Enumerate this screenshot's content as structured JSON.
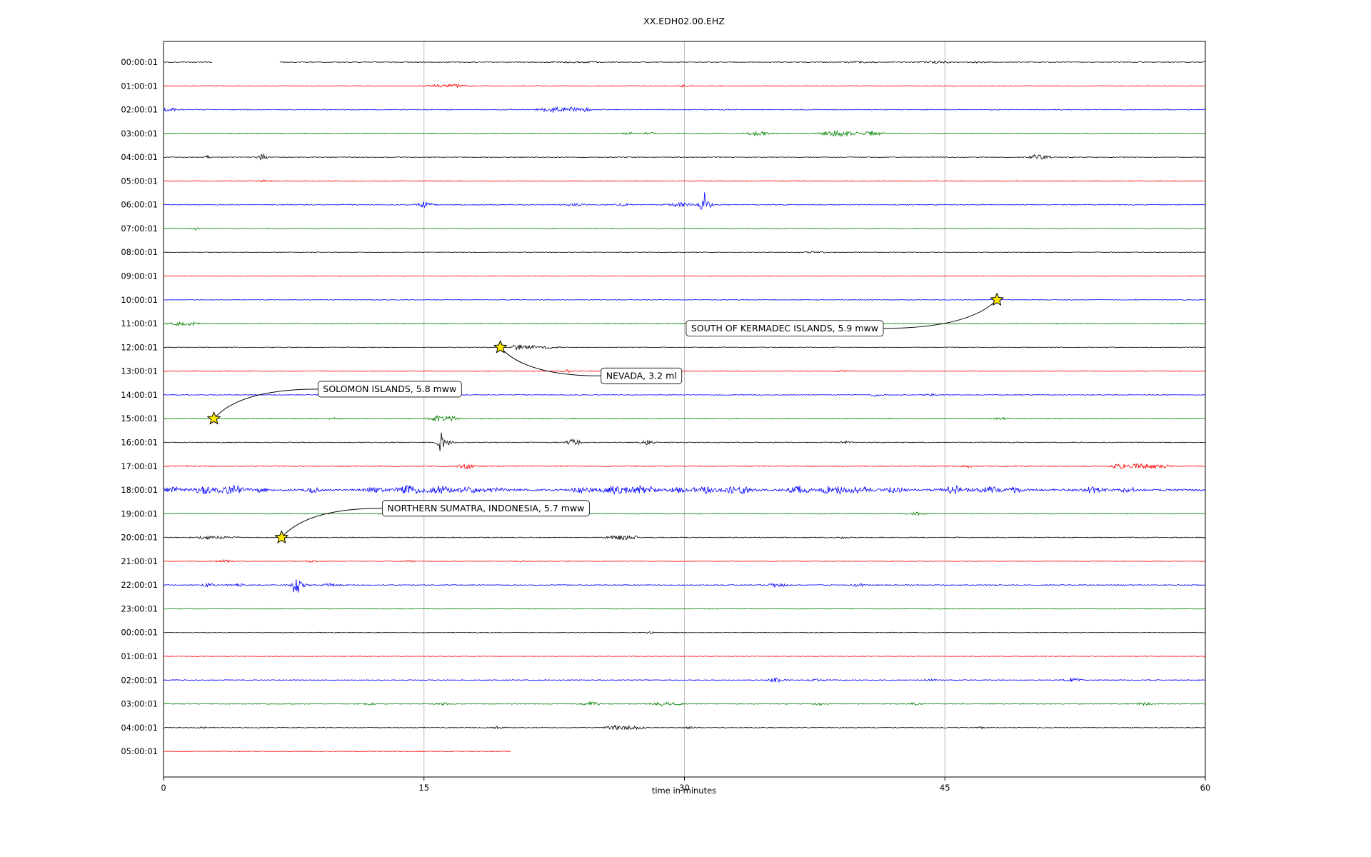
{
  "chart_data": {
    "type": "line",
    "title": "XX.EDH02.00.EHZ",
    "xlabel": "time in minutes",
    "xlim": [
      0,
      60
    ],
    "x_ticks": [
      0,
      15,
      30,
      45,
      60
    ],
    "grid_x": [
      15,
      30,
      45
    ],
    "grid_color": "#bdbdbd",
    "trace_colors": [
      "#000000",
      "#ff0000",
      "#0000ff",
      "#008000"
    ],
    "star_color": "#ffe900",
    "rows": [
      {
        "label": "00:00:01",
        "color": 0,
        "base": 0.5,
        "segments": [
          [
            0,
            2.8
          ],
          [
            6.7,
            60
          ]
        ],
        "bursts": [
          [
            24,
            1.5,
            0.7
          ],
          [
            40,
            1,
            0.9
          ],
          [
            44.5,
            0.8,
            1.3
          ],
          [
            47,
            0.5,
            0.9
          ]
        ]
      },
      {
        "label": "01:00:01",
        "color": 1,
        "base": 0.5,
        "bursts": [
          [
            15.9,
            0.7,
            2.2
          ],
          [
            16.9,
            0.4,
            1.8
          ],
          [
            30,
            0.2,
            1.8
          ]
        ]
      },
      {
        "label": "02:00:01",
        "color": 2,
        "base": 0.6,
        "bursts": [
          [
            0.4,
            0.4,
            2.8
          ],
          [
            22.4,
            0.7,
            3.8
          ],
          [
            23.6,
            0.4,
            3.2
          ],
          [
            24.3,
            0.3,
            2.2
          ]
        ]
      },
      {
        "label": "03:00:01",
        "color": 3,
        "base": 0.6,
        "bursts": [
          [
            26.8,
            0.3,
            1.3
          ],
          [
            28,
            0.3,
            1.3
          ],
          [
            34.3,
            0.6,
            3.2
          ],
          [
            38.9,
            0.9,
            4.6
          ],
          [
            40.9,
            0.5,
            3.2
          ]
        ]
      },
      {
        "label": "04:00:01",
        "color": 0,
        "base": 0.5,
        "bursts": [
          [
            2.5,
            0.2,
            1.8
          ],
          [
            5.7,
            0.25,
            4.5
          ],
          [
            50.3,
            0.4,
            3.6
          ],
          [
            50.9,
            0.2,
            2.6
          ]
        ]
      },
      {
        "label": "05:00:01",
        "color": 1,
        "base": 0.5,
        "bursts": [
          [
            5.8,
            0.3,
            1.3
          ]
        ]
      },
      {
        "label": "06:00:01",
        "color": 2,
        "base": 0.6,
        "bursts": [
          [
            15.1,
            0.4,
            4.5
          ],
          [
            23.7,
            0.5,
            1.4
          ],
          [
            26.5,
            0.4,
            1.4
          ],
          [
            29.8,
            0.6,
            2.8
          ],
          [
            31.1,
            0.15,
            21
          ],
          [
            31.3,
            0.35,
            5.5
          ]
        ]
      },
      {
        "label": "07:00:01",
        "color": 3,
        "base": 0.5,
        "bursts": [
          [
            1.8,
            0.15,
            2.8
          ]
        ]
      },
      {
        "label": "08:00:01",
        "color": 0,
        "base": 0.45,
        "bursts": [
          [
            37.5,
            1,
            0.7
          ]
        ]
      },
      {
        "label": "09:00:01",
        "color": 1,
        "base": 0.45,
        "bursts": []
      },
      {
        "label": "10:00:01",
        "color": 2,
        "base": 0.45,
        "bursts": []
      },
      {
        "label": "11:00:01",
        "color": 3,
        "base": 0.6,
        "bursts": [
          [
            0.9,
            0.5,
            2.8
          ],
          [
            1.7,
            0.3,
            1.8
          ]
        ]
      },
      {
        "label": "12:00:01",
        "color": 0,
        "base": 0.5,
        "bursts": [
          [
            20.4,
            0.3,
            4.6
          ],
          [
            21.1,
            0.5,
            2.3
          ],
          [
            22.1,
            0.6,
            1.1
          ]
        ]
      },
      {
        "label": "13:00:01",
        "color": 1,
        "base": 0.5,
        "bursts": [
          [
            23.2,
            0.3,
            1.8
          ],
          [
            39.2,
            0.3,
            1.1
          ]
        ]
      },
      {
        "label": "14:00:01",
        "color": 2,
        "base": 0.5,
        "bursts": [
          [
            41,
            0.3,
            1.8
          ],
          [
            44.1,
            0.4,
            1.4
          ]
        ]
      },
      {
        "label": "15:00:01",
        "color": 3,
        "base": 0.6,
        "bursts": [
          [
            9.9,
            0.3,
            1.4
          ],
          [
            15.9,
            0.5,
            4.2
          ],
          [
            16.7,
            0.3,
            2.8
          ],
          [
            48.2,
            0.3,
            1.4
          ]
        ]
      },
      {
        "label": "16:00:01",
        "color": 0,
        "base": 0.6,
        "bursts": [
          [
            16,
            0.15,
            13
          ],
          [
            16.2,
            0.4,
            3.6
          ],
          [
            23.6,
            0.4,
            3.8
          ],
          [
            27.9,
            0.35,
            3.2
          ],
          [
            39.3,
            0.3,
            1.4
          ]
        ]
      },
      {
        "label": "17:00:01",
        "color": 1,
        "base": 0.7,
        "bursts": [
          [
            17.4,
            0.4,
            3.8
          ],
          [
            46.3,
            0.3,
            1.4
          ],
          [
            55.1,
            0.5,
            2.8
          ],
          [
            56.4,
            0.7,
            3.8
          ],
          [
            57.6,
            0.4,
            1.8
          ]
        ]
      },
      {
        "label": "18:00:01",
        "color": 2,
        "base": 1.3,
        "bursts": [
          [
            0.5,
            0.5,
            3.6
          ],
          [
            2.3,
            0.6,
            4.6
          ],
          [
            3.9,
            0.7,
            5.5
          ],
          [
            5.4,
            0.4,
            3.6
          ],
          [
            8.6,
            0.4,
            2.8
          ],
          [
            12.1,
            0.5,
            2.8
          ],
          [
            14.1,
            0.8,
            4.6
          ],
          [
            15.9,
            0.7,
            4.6
          ],
          [
            17.6,
            0.6,
            3.6
          ],
          [
            19.1,
            0.5,
            2.8
          ],
          [
            24.1,
            0.6,
            2.8
          ],
          [
            26.1,
            0.8,
            4.6
          ],
          [
            27.6,
            0.7,
            5.5
          ],
          [
            29.6,
            0.5,
            3.6
          ],
          [
            31.1,
            0.6,
            4.6
          ],
          [
            33.1,
            0.8,
            4.6
          ],
          [
            36.6,
            0.6,
            4.6
          ],
          [
            38.6,
            0.7,
            5.5
          ],
          [
            40.1,
            0.6,
            4.6
          ],
          [
            42.1,
            0.5,
            3.6
          ],
          [
            45.6,
            0.8,
            4.6
          ],
          [
            47.6,
            0.6,
            3.6
          ],
          [
            49.1,
            0.5,
            2.8
          ],
          [
            53.6,
            0.6,
            3.6
          ],
          [
            55.6,
            0.5,
            2.8
          ]
        ]
      },
      {
        "label": "19:00:01",
        "color": 3,
        "base": 0.5,
        "bursts": [
          [
            43.4,
            0.4,
            1.8
          ]
        ]
      },
      {
        "label": "20:00:01",
        "color": 0,
        "base": 0.6,
        "bursts": [
          [
            2.4,
            0.5,
            2.2
          ],
          [
            3.3,
            0.3,
            1.8
          ],
          [
            4.1,
            0.2,
            1.4
          ],
          [
            26.1,
            0.5,
            3.2
          ],
          [
            26.9,
            0.4,
            2.8
          ],
          [
            39.1,
            0.3,
            1.1
          ]
        ]
      },
      {
        "label": "21:00:01",
        "color": 1,
        "base": 0.5,
        "bursts": [
          [
            3.5,
            0.4,
            1.8
          ],
          [
            8.5,
            0.3,
            1.1
          ],
          [
            14.1,
            0.3,
            1.4
          ],
          [
            20.6,
            0.3,
            1.1
          ]
        ]
      },
      {
        "label": "22:00:01",
        "color": 2,
        "base": 0.6,
        "bursts": [
          [
            2.5,
            0.4,
            2.2
          ],
          [
            4.3,
            0.4,
            1.8
          ],
          [
            7.6,
            0.18,
            15
          ],
          [
            7.8,
            0.4,
            5.5
          ],
          [
            9.6,
            0.4,
            2.2
          ],
          [
            35.4,
            0.5,
            2.8
          ],
          [
            40.1,
            0.4,
            2.2
          ]
        ]
      },
      {
        "label": "23:00:01",
        "color": 3,
        "base": 0.5,
        "bursts": []
      },
      {
        "label": "00:00:01",
        "color": 0,
        "base": 0.45,
        "bursts": [
          [
            28,
            0.15,
            2.8
          ]
        ]
      },
      {
        "label": "01:00:01",
        "color": 1,
        "base": 0.45,
        "bursts": []
      },
      {
        "label": "02:00:01",
        "color": 2,
        "base": 0.6,
        "bursts": [
          [
            35.3,
            0.4,
            2.8
          ],
          [
            37.6,
            0.4,
            1.4
          ],
          [
            44.1,
            0.3,
            1.1
          ],
          [
            52.4,
            0.4,
            2.2
          ]
        ]
      },
      {
        "label": "03:00:01",
        "color": 3,
        "base": 0.6,
        "bursts": [
          [
            11.9,
            0.3,
            1.4
          ],
          [
            16.1,
            0.3,
            1.4
          ],
          [
            24.6,
            0.5,
            2.2
          ],
          [
            28.8,
            0.5,
            2.8
          ],
          [
            29.6,
            0.3,
            2.2
          ],
          [
            37.7,
            0.3,
            1.8
          ],
          [
            43.3,
            0.3,
            1.4
          ],
          [
            56.4,
            0.4,
            1.8
          ]
        ]
      },
      {
        "label": "04:00:01",
        "color": 0,
        "base": 0.5,
        "bursts": [
          [
            2.3,
            0.2,
            1.4
          ],
          [
            19.3,
            0.3,
            1.8
          ],
          [
            25.9,
            0.4,
            2.8
          ],
          [
            26.7,
            0.4,
            3.2
          ],
          [
            27.4,
            0.3,
            2.2
          ],
          [
            30.3,
            0.3,
            1.4
          ],
          [
            47.1,
            0.2,
            0.9
          ]
        ]
      },
      {
        "label": "05:00:01",
        "color": 1,
        "base": 0.5,
        "segments": [
          [
            0,
            20
          ]
        ],
        "bursts": []
      }
    ],
    "events": [
      {
        "label": "SOUTH OF KERMADEC ISLANDS, 5.9 mww",
        "star_x": 48,
        "star_row": 10,
        "box_x": 30.1,
        "box_row": 11.2,
        "anchor": "right"
      },
      {
        "label": "NEVADA, 3.2 ml",
        "star_x": 19.4,
        "star_row": 12,
        "box_x": 25.2,
        "box_row": 13.2,
        "anchor": "left"
      },
      {
        "label": "SOLOMON ISLANDS, 5.8 mww",
        "star_x": 2.9,
        "star_row": 15,
        "box_x": 8.9,
        "box_row": 13.76,
        "anchor": "left"
      },
      {
        "label": "NORTHERN SUMATRA, INDONESIA, 5.7 mww",
        "star_x": 6.8,
        "star_row": 20,
        "box_x": 12.6,
        "box_row": 18.77,
        "anchor": "left"
      }
    ]
  }
}
